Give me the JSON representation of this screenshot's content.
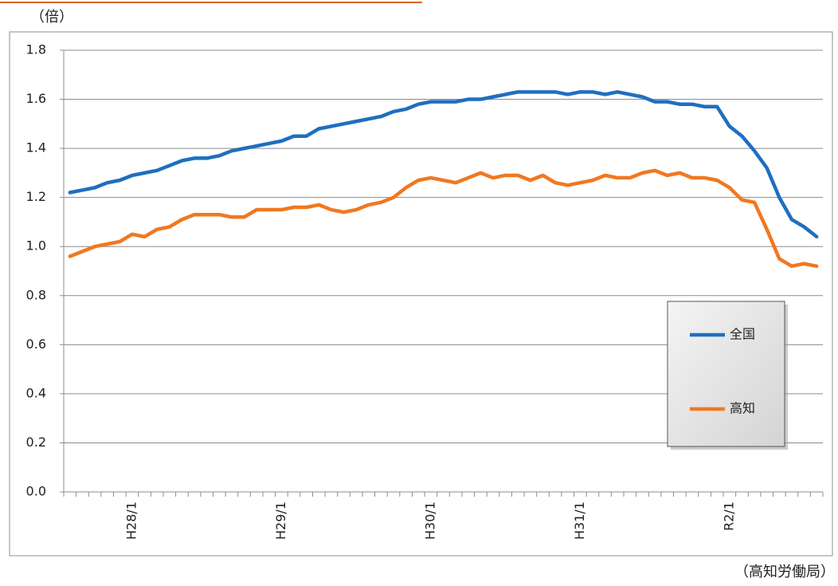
{
  "chart_data": {
    "type": "line",
    "y_unit": "（倍）",
    "source": "（高知労働局）",
    "categories": [
      null,
      null,
      null,
      null,
      null,
      "H28/1",
      null,
      null,
      null,
      null,
      null,
      null,
      null,
      null,
      null,
      null,
      null,
      "H29/1",
      null,
      null,
      null,
      null,
      null,
      null,
      null,
      null,
      null,
      null,
      null,
      "H30/1",
      null,
      null,
      null,
      null,
      null,
      null,
      null,
      null,
      null,
      null,
      null,
      "H31/1",
      null,
      null,
      null,
      null,
      null,
      null,
      null,
      null,
      null,
      null,
      null,
      "R2/1",
      null,
      null,
      null,
      null,
      null,
      null,
      null
    ],
    "series": [
      {
        "name": "全国",
        "color": "#1f6fbf",
        "values": [
          1.22,
          1.23,
          1.24,
          1.26,
          1.27,
          1.29,
          1.3,
          1.31,
          1.33,
          1.35,
          1.36,
          1.36,
          1.37,
          1.39,
          1.4,
          1.41,
          1.42,
          1.43,
          1.45,
          1.45,
          1.48,
          1.49,
          1.5,
          1.51,
          1.52,
          1.53,
          1.55,
          1.56,
          1.58,
          1.59,
          1.59,
          1.59,
          1.6,
          1.6,
          1.61,
          1.62,
          1.63,
          1.63,
          1.63,
          1.63,
          1.62,
          1.63,
          1.63,
          1.62,
          1.63,
          1.62,
          1.61,
          1.59,
          1.59,
          1.58,
          1.58,
          1.57,
          1.57,
          1.49,
          1.45,
          1.39,
          1.32,
          1.2,
          1.11,
          1.08,
          1.04
        ]
      },
      {
        "name": "高知",
        "color": "#f07820",
        "values": [
          0.96,
          0.98,
          1.0,
          1.01,
          1.02,
          1.05,
          1.04,
          1.07,
          1.08,
          1.11,
          1.13,
          1.13,
          1.13,
          1.12,
          1.12,
          1.15,
          1.15,
          1.15,
          1.16,
          1.16,
          1.17,
          1.15,
          1.14,
          1.15,
          1.17,
          1.18,
          1.2,
          1.24,
          1.27,
          1.28,
          1.27,
          1.26,
          1.28,
          1.3,
          1.28,
          1.29,
          1.29,
          1.27,
          1.29,
          1.26,
          1.25,
          1.26,
          1.27,
          1.29,
          1.28,
          1.28,
          1.3,
          1.31,
          1.29,
          1.3,
          1.28,
          1.28,
          1.27,
          1.24,
          1.19,
          1.18,
          1.07,
          0.95,
          0.92,
          0.93,
          0.92
        ]
      }
    ],
    "ylim": [
      0,
      1.8
    ],
    "yticks": [
      {
        "value": 0,
        "label": "0.0"
      },
      0.2,
      0.4,
      0.6,
      0.8,
      {
        "value": 1,
        "label": "1.0"
      },
      1.2,
      1.4,
      1.6,
      1.8
    ],
    "grid": true
  }
}
